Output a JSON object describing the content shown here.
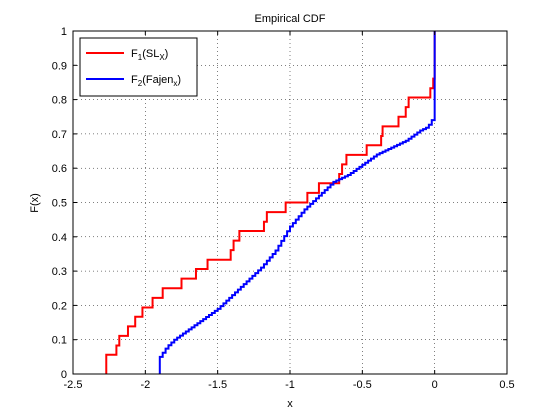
{
  "chart_data": {
    "type": "line",
    "title": "Empirical CDF",
    "xlabel": "x",
    "ylabel": "F(x)",
    "xlim": [
      -2.5,
      0.5
    ],
    "ylim": [
      0,
      1
    ],
    "grid": "on",
    "legend_position": "top-left",
    "x_ticks": [
      "-2.5",
      "-2",
      "-1.5",
      "-1",
      "-0.5",
      "0",
      "0.5"
    ],
    "y_ticks": [
      "0",
      "0.1",
      "0.2",
      "0.3",
      "0.4",
      "0.5",
      "0.6",
      "0.7",
      "0.8",
      "0.9",
      "1"
    ],
    "series": [
      {
        "name": "F1(SLX)",
        "legend": {
          "main": "F",
          "sub1": "1",
          "mid": "(SL",
          "sub2": "X",
          "end": ")"
        },
        "color": "#ff0000",
        "steps": [
          [
            -2.27,
            0.0
          ],
          [
            -2.27,
            0.056
          ],
          [
            -2.2,
            0.083
          ],
          [
            -2.18,
            0.111
          ],
          [
            -2.12,
            0.139
          ],
          [
            -2.07,
            0.167
          ],
          [
            -2.02,
            0.194
          ],
          [
            -1.95,
            0.222
          ],
          [
            -1.88,
            0.25
          ],
          [
            -1.75,
            0.278
          ],
          [
            -1.65,
            0.306
          ],
          [
            -1.57,
            0.333
          ],
          [
            -1.41,
            0.361
          ],
          [
            -1.39,
            0.389
          ],
          [
            -1.35,
            0.417
          ],
          [
            -1.18,
            0.444
          ],
          [
            -1.16,
            0.472
          ],
          [
            -1.03,
            0.5
          ],
          [
            -0.88,
            0.528
          ],
          [
            -0.8,
            0.556
          ],
          [
            -0.66,
            0.583
          ],
          [
            -0.64,
            0.611
          ],
          [
            -0.61,
            0.639
          ],
          [
            -0.47,
            0.667
          ],
          [
            -0.37,
            0.694
          ],
          [
            -0.36,
            0.722
          ],
          [
            -0.25,
            0.75
          ],
          [
            -0.2,
            0.778
          ],
          [
            -0.18,
            0.806
          ],
          [
            -0.03,
            0.833
          ],
          [
            -0.01,
            0.861
          ],
          [
            0.0,
            1.0
          ]
        ],
        "end": [
          0.0,
          1.0
        ]
      },
      {
        "name": "F2(FajenX)",
        "legend": {
          "main": "F",
          "sub1": "2",
          "mid": "(Fajen",
          "sub2": "x",
          "end": ")"
        },
        "color": "#0000ff",
        "curve": [
          [
            -1.9,
            0.0
          ],
          [
            -1.9,
            0.05
          ],
          [
            -1.85,
            0.08
          ],
          [
            -1.8,
            0.1
          ],
          [
            -1.7,
            0.13
          ],
          [
            -1.6,
            0.16
          ],
          [
            -1.5,
            0.19
          ],
          [
            -1.4,
            0.23
          ],
          [
            -1.3,
            0.27
          ],
          [
            -1.2,
            0.31
          ],
          [
            -1.1,
            0.36
          ],
          [
            -1.0,
            0.43
          ],
          [
            -0.9,
            0.48
          ],
          [
            -0.8,
            0.52
          ],
          [
            -0.7,
            0.56
          ],
          [
            -0.6,
            0.58
          ],
          [
            -0.5,
            0.61
          ],
          [
            -0.4,
            0.64
          ],
          [
            -0.3,
            0.66
          ],
          [
            -0.2,
            0.68
          ],
          [
            -0.1,
            0.71
          ],
          [
            -0.05,
            0.72
          ],
          [
            -0.02,
            0.74
          ],
          [
            0.0,
            0.77
          ],
          [
            0.0,
            1.0
          ]
        ]
      }
    ]
  }
}
